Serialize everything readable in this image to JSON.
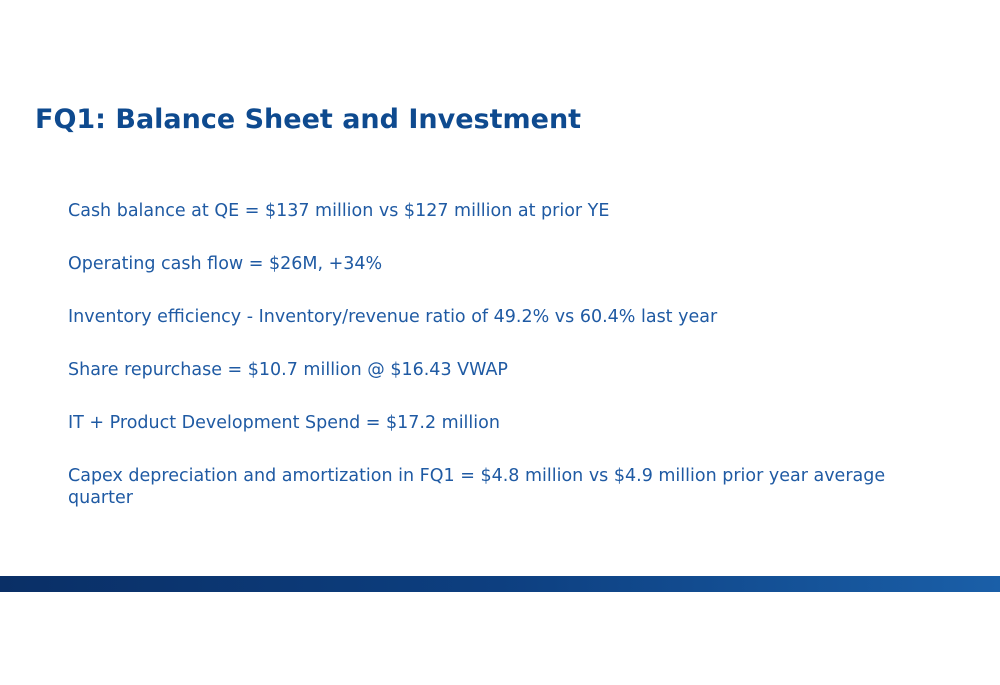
{
  "slide": {
    "title": "FQ1: Balance Sheet and Investment",
    "bullets": [
      "Cash balance at QE = $137 million vs $127 million at prior YE",
      "Operating cash flow = $26M, +34%",
      "Inventory efficiency - Inventory/revenue ratio of 49.2% vs 60.4% last year",
      "Share repurchase = $10.7 million @ $16.43 VWAP",
      "IT + Product Development Spend = $17.2 million",
      "Capex depreciation and amortization in FQ1 = $4.8 million vs $4.9 million prior year average quarter"
    ]
  },
  "colors": {
    "title": "#0e4a8f",
    "body_text": "#1f5aa3",
    "band_dark": "#0a2f66",
    "band_light": "#1a5fa8"
  }
}
